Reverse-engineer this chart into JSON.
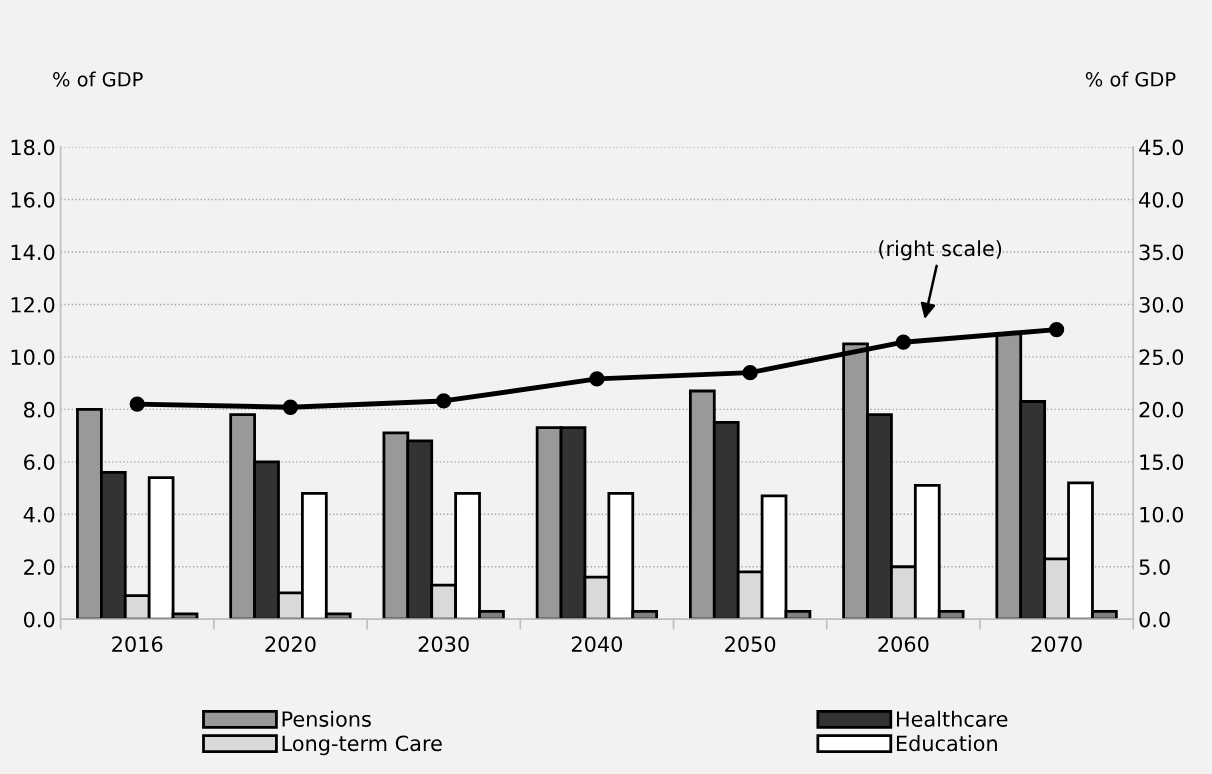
{
  "chart_data": {
    "type": "bar",
    "ylabel": "% of GDP",
    "y2label": "% of GDP",
    "categories": [
      "2016",
      "2020",
      "2030",
      "2040",
      "2050",
      "2060",
      "2070"
    ],
    "series": [
      {
        "name": "Pensions",
        "color": "#999999",
        "values": [
          8.0,
          7.8,
          7.1,
          7.3,
          8.7,
          10.5,
          10.9
        ]
      },
      {
        "name": "Healthcare",
        "color": "#333333",
        "values": [
          5.6,
          6.0,
          6.8,
          7.3,
          7.5,
          7.8,
          8.3
        ]
      },
      {
        "name": "Long-term Care",
        "color": "#d9d9d9",
        "values": [
          0.9,
          1.0,
          1.3,
          1.6,
          1.8,
          2.0,
          2.3
        ]
      },
      {
        "name": "Education",
        "color": "#ffffff",
        "values": [
          5.4,
          4.8,
          4.8,
          4.8,
          4.7,
          5.1,
          5.2
        ]
      },
      {
        "color": "#808080",
        "values": [
          0.2,
          0.2,
          0.3,
          0.3,
          0.3,
          0.3,
          0.3
        ]
      },
      {
        "type": "line",
        "axis": "y2",
        "color": "#000000",
        "values": [
          20.5,
          20.2,
          20.8,
          22.9,
          23.5,
          26.4,
          27.6
        ]
      }
    ],
    "ylim": [
      0,
      18
    ],
    "yticks": [
      {
        "value": 0,
        "label": "0.0"
      },
      {
        "value": 2,
        "label": "2.0"
      },
      {
        "value": 4,
        "label": "4.0"
      },
      {
        "value": 6,
        "label": "6.0"
      },
      {
        "value": 8,
        "label": "8.0"
      },
      {
        "value": 10,
        "label": "10.0"
      },
      {
        "value": 12,
        "label": "12.0"
      },
      {
        "value": 14,
        "label": "14.0"
      },
      {
        "value": 16,
        "label": "16.0"
      },
      {
        "value": 18,
        "label": "18.0"
      }
    ],
    "y2lim": [
      0,
      45
    ],
    "y2ticks": [
      {
        "value": 0,
        "label": "0.0"
      },
      {
        "value": 5,
        "label": "5.0"
      },
      {
        "value": 10,
        "label": "10.0"
      },
      {
        "value": 15,
        "label": "15.0"
      },
      {
        "value": 20,
        "label": "20.0"
      },
      {
        "value": 25,
        "label": "25.0"
      },
      {
        "value": 30,
        "label": "30.0"
      },
      {
        "value": 35,
        "label": "35.0"
      },
      {
        "value": 40,
        "label": "40.0"
      },
      {
        "value": 45,
        "label": "45.0"
      }
    ],
    "annotations": [
      "(right scale)"
    ],
    "grid": "y",
    "legend": "bottom",
    "marker": "circle",
    "line_style": "solid"
  }
}
